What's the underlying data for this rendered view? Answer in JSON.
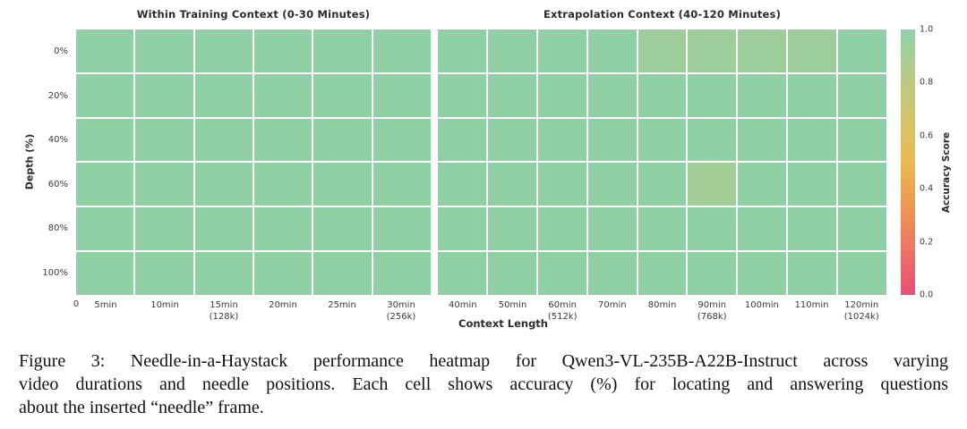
{
  "figure": {
    "x_axis_label": "Context Length",
    "y_axis_label": "Depth (%)",
    "colorbar": {
      "label": "Accuracy Score",
      "ticks": [
        "1.0",
        "0.8",
        "0.6",
        "0.4",
        "0.2",
        "0.0"
      ],
      "gradient_stops": [
        {
          "value": 1.0,
          "color": "#8ed2a6"
        },
        {
          "value": 0.9,
          "color": "#a5ce95"
        },
        {
          "value": 0.8,
          "color": "#bcca82"
        },
        {
          "value": 0.7,
          "color": "#cec672"
        },
        {
          "value": 0.6,
          "color": "#ddc162"
        },
        {
          "value": 0.5,
          "color": "#e9ba52"
        },
        {
          "value": 0.4,
          "color": "#eda44f"
        },
        {
          "value": 0.3,
          "color": "#ef9057"
        },
        {
          "value": 0.2,
          "color": "#ef7a60"
        },
        {
          "value": 0.1,
          "color": "#ec636c"
        },
        {
          "value": 0.0,
          "color": "#e65078"
        }
      ]
    },
    "color_scale": [
      {
        "min": 0.97,
        "color": "#8fd1a5"
      },
      {
        "min": 0.92,
        "color": "#9ccd9b"
      },
      {
        "min": 0.0,
        "color": "#a3cd97"
      }
    ],
    "grid_gap_color": "#ffffff"
  },
  "chart_data": [
    {
      "type": "heatmap",
      "title": "Within Training Context (0-30 Minutes)",
      "x_origin_label": "0",
      "x_categories": [
        "5min",
        "10min",
        "15min\n(128k)",
        "20min",
        "25min",
        "30min\n(256k)"
      ],
      "y_categories": [
        "0%",
        "20%",
        "40%",
        "60%",
        "80%",
        "100%"
      ],
      "xlabel": "Context Length",
      "ylabel": "Depth (%)",
      "legend": "Accuracy Score colorbar, range 0.0-1.0, right side",
      "values": [
        [
          1.0,
          1.0,
          1.0,
          1.0,
          1.0,
          1.0
        ],
        [
          1.0,
          1.0,
          1.0,
          1.0,
          1.0,
          1.0
        ],
        [
          1.0,
          1.0,
          1.0,
          1.0,
          1.0,
          1.0
        ],
        [
          1.0,
          1.0,
          1.0,
          1.0,
          1.0,
          1.0
        ],
        [
          1.0,
          1.0,
          1.0,
          1.0,
          1.0,
          1.0
        ],
        [
          1.0,
          1.0,
          1.0,
          1.0,
          1.0,
          1.0
        ]
      ]
    },
    {
      "type": "heatmap",
      "title": "Extrapolation Context (40-120 Minutes)",
      "x_categories": [
        "40min",
        "50min",
        "60min\n(512k)",
        "70min",
        "80min",
        "90min\n(768k)",
        "100min",
        "110min",
        "120min\n(1024k)"
      ],
      "y_categories": [
        "0%",
        "20%",
        "40%",
        "60%",
        "80%",
        "100%"
      ],
      "xlabel": "Context Length",
      "ylabel": "Depth (%)",
      "legend": "Accuracy Score colorbar, range 0.0-1.0, right side",
      "values": [
        [
          1.0,
          1.0,
          1.0,
          1.0,
          0.93,
          0.93,
          0.93,
          0.93,
          1.0
        ],
        [
          1.0,
          1.0,
          1.0,
          1.0,
          1.0,
          1.0,
          1.0,
          1.0,
          1.0
        ],
        [
          1.0,
          1.0,
          1.0,
          1.0,
          1.0,
          1.0,
          1.0,
          1.0,
          1.0
        ],
        [
          1.0,
          1.0,
          1.0,
          1.0,
          1.0,
          0.9,
          1.0,
          1.0,
          1.0
        ],
        [
          1.0,
          1.0,
          1.0,
          1.0,
          1.0,
          1.0,
          1.0,
          1.0,
          1.0
        ],
        [
          1.0,
          1.0,
          1.0,
          1.0,
          1.0,
          1.0,
          1.0,
          1.0,
          1.0
        ]
      ]
    }
  ],
  "caption": {
    "lines": [
      "Figure 3: Needle-in-a-Haystack performance heatmap for Qwen3-VL-235B-A22B-Instruct across varying",
      "video durations and needle positions. Each cell shows accuracy (%) for locating and answering questions",
      "about the inserted “needle” frame."
    ]
  }
}
